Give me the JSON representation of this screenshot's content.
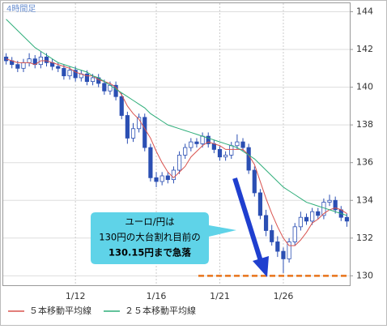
{
  "chart_data": {
    "type": "candlestick",
    "title": "4時間足",
    "categories": [
      null,
      null,
      null,
      null,
      null,
      null,
      null,
      null,
      null,
      null,
      null,
      null,
      "1/12",
      null,
      null,
      null,
      null,
      null,
      null,
      null,
      null,
      null,
      null,
      null,
      null,
      null,
      "1/16",
      null,
      null,
      null,
      null,
      null,
      null,
      null,
      null,
      null,
      null,
      "1/21",
      null,
      null,
      null,
      null,
      null,
      null,
      null,
      null,
      null,
      null,
      "1/26",
      null,
      null,
      null,
      null,
      null,
      null,
      null,
      null,
      null,
      null,
      null
    ],
    "open": [
      141.6,
      141.4,
      141.2,
      141.0,
      141.3,
      141.5,
      141.2,
      141.6,
      141.3,
      141.1,
      141.0,
      140.6,
      140.9,
      140.5,
      140.7,
      140.3,
      140.5,
      140.2,
      139.8,
      140.1,
      139.5,
      138.5,
      137.3,
      137.8,
      138.4,
      136.8,
      135.2,
      135.0,
      135.3,
      135.1,
      135.6,
      136.4,
      136.8,
      137.1,
      137.0,
      137.4,
      137.0,
      136.7,
      136.3,
      136.4,
      136.9,
      137.1,
      136.8,
      135.6,
      134.4,
      133.2,
      132.4,
      131.8,
      131.3,
      130.9,
      131.8,
      132.6,
      133.1,
      132.9,
      133.4,
      133.2,
      133.9,
      134.0,
      133.5,
      133.1
    ],
    "high": [
      141.8,
      141.6,
      141.4,
      141.5,
      141.8,
      141.7,
      141.9,
      141.8,
      141.5,
      141.3,
      141.2,
      141.1,
      141.1,
      140.9,
      140.9,
      140.7,
      140.7,
      140.4,
      140.3,
      140.3,
      139.7,
      138.7,
      138.1,
      138.6,
      138.6,
      137.0,
      135.5,
      135.5,
      135.5,
      135.8,
      136.6,
      137.0,
      137.3,
      137.3,
      137.6,
      137.6,
      137.2,
      136.9,
      136.6,
      137.1,
      137.5,
      137.3,
      137.0,
      135.8,
      134.6,
      133.5,
      132.7,
      132.1,
      131.5,
      132.0,
      132.8,
      133.4,
      133.3,
      133.6,
      133.6,
      134.1,
      134.3,
      134.2,
      133.7,
      133.3
    ],
    "low": [
      141.2,
      141.0,
      140.8,
      140.8,
      141.1,
      141.0,
      141.0,
      141.1,
      140.9,
      140.8,
      140.4,
      140.4,
      140.3,
      140.3,
      140.1,
      140.1,
      140.0,
      139.6,
      139.6,
      139.3,
      138.3,
      137.0,
      137.1,
      137.6,
      136.6,
      135.0,
      134.7,
      134.8,
      134.9,
      134.9,
      135.4,
      136.2,
      136.6,
      136.8,
      136.8,
      136.8,
      136.5,
      136.1,
      136.1,
      136.2,
      136.7,
      136.6,
      135.4,
      134.2,
      133.0,
      132.1,
      131.6,
      131.0,
      130.15,
      130.7,
      131.6,
      132.4,
      132.7,
      132.7,
      133.0,
      133.0,
      133.7,
      133.3,
      132.9,
      132.6
    ],
    "close": [
      141.4,
      141.2,
      141.0,
      141.3,
      141.5,
      141.2,
      141.6,
      141.3,
      141.1,
      141.0,
      140.6,
      140.9,
      140.5,
      140.7,
      140.3,
      140.5,
      140.2,
      139.8,
      140.1,
      139.5,
      138.5,
      137.3,
      137.8,
      138.4,
      136.8,
      135.2,
      135.0,
      135.3,
      135.1,
      135.6,
      136.4,
      136.8,
      137.1,
      137.0,
      137.4,
      137.0,
      136.7,
      136.3,
      136.4,
      136.9,
      137.1,
      136.8,
      135.6,
      134.4,
      133.2,
      132.4,
      131.8,
      131.3,
      130.9,
      131.8,
      132.6,
      133.1,
      132.9,
      133.4,
      133.2,
      133.9,
      134.0,
      133.5,
      133.1,
      132.9
    ],
    "up_color": "#ffffff",
    "down_color": "#2b4fb3",
    "series": [
      {
        "name": "５本移動平均線",
        "color": "#d9534f",
        "values": [
          141.5,
          141.4,
          141.3,
          141.3,
          141.3,
          141.2,
          141.4,
          141.4,
          141.3,
          141.2,
          141.1,
          141.0,
          140.8,
          140.7,
          140.6,
          140.6,
          140.4,
          140.3,
          140.2,
          140.0,
          139.6,
          139.0,
          138.6,
          138.3,
          137.8,
          137.3,
          136.6,
          136.0,
          135.5,
          135.2,
          135.5,
          135.8,
          136.3,
          136.6,
          136.9,
          137.1,
          137.0,
          136.9,
          136.7,
          136.7,
          136.7,
          136.7,
          136.4,
          135.9,
          135.0,
          134.1,
          133.3,
          132.6,
          132.0,
          131.6,
          131.6,
          131.9,
          132.3,
          132.8,
          133.0,
          133.3,
          133.5,
          133.6,
          133.5,
          133.3
        ]
      },
      {
        "name": "２５本移動平均線",
        "color": "#2fae7a",
        "values": [
          143.6,
          143.3,
          143.0,
          142.7,
          142.4,
          142.1,
          141.9,
          141.7,
          141.5,
          141.3,
          141.2,
          141.1,
          141.0,
          140.9,
          140.8,
          140.6,
          140.5,
          140.3,
          140.1,
          139.9,
          139.7,
          139.5,
          139.3,
          139.1,
          138.9,
          138.6,
          138.4,
          138.2,
          138.0,
          137.9,
          137.8,
          137.7,
          137.6,
          137.5,
          137.4,
          137.3,
          137.2,
          137.1,
          137.0,
          136.9,
          136.8,
          136.6,
          136.4,
          136.2,
          135.9,
          135.6,
          135.3,
          135.0,
          134.7,
          134.5,
          134.3,
          134.1,
          133.9,
          133.8,
          133.7,
          133.6,
          133.5,
          133.4,
          133.3,
          133.2
        ]
      }
    ],
    "ylim": [
      129.5,
      144.45
    ],
    "yticks": [
      130,
      132,
      134,
      136,
      138,
      140,
      142,
      144
    ],
    "grid": true,
    "reference_line": {
      "value": 130,
      "color": "#e8731a"
    },
    "annotation": {
      "lines": [
        "ユーロ/円は",
        "130円の大台割れ目前の",
        "130.15円まで急落"
      ]
    }
  }
}
